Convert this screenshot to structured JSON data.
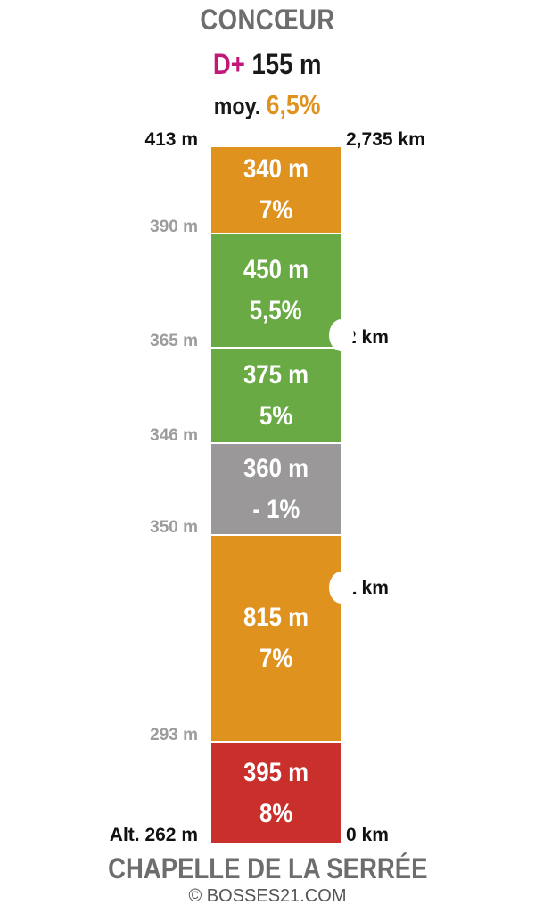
{
  "header": {
    "title": "CONCŒUR",
    "dplus_label": "D+",
    "dplus_value": "155 m",
    "avg_label": "moy.",
    "avg_value": "6,5%"
  },
  "altitudes": [
    "413 m",
    "390 m",
    "365 m",
    "346 m",
    "350 m",
    "293 m",
    "Alt. 262 m"
  ],
  "distances": {
    "top": "2,735 km",
    "km2": "2 km",
    "km1": "1 km",
    "start": "0 km"
  },
  "segments": [
    {
      "length": "340 m",
      "grade": "7%",
      "color": "#e0921f"
    },
    {
      "length": "450 m",
      "grade": "5,5%",
      "color": "#6aaa45"
    },
    {
      "length": "375 m",
      "grade": "5%",
      "color": "#6aaa45"
    },
    {
      "length": "360 m",
      "grade": "- 1%",
      "color": "#9a9898"
    },
    {
      "length": "815 m",
      "grade": "7%",
      "color": "#e0921f"
    },
    {
      "length": "395 m",
      "grade": "8%",
      "color": "#c9302c"
    }
  ],
  "footer": {
    "start_name": "CHAPELLE DE LA SERRÉE",
    "copyright": "© BOSSES21.COM"
  }
}
